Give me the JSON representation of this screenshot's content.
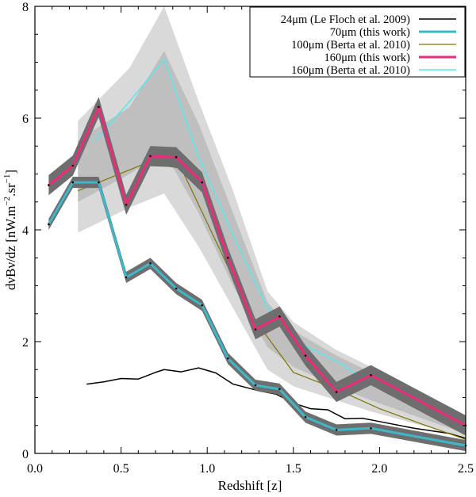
{
  "chart_data": {
    "type": "line",
    "title": "",
    "xlabel": "Redshift [z]",
    "ylabel_parts": {
      "main": "dνBν/dz [nW.m",
      "sup1": "−2",
      "mid": ".sr",
      "sup2": "−1",
      "end": "]"
    },
    "xlim": [
      0.0,
      2.5
    ],
    "ylim": [
      0,
      8
    ],
    "x_ticks": [
      "0.0",
      "0.5",
      "1.0",
      "1.5",
      "2.0",
      "2.5"
    ],
    "x_tick_values": [
      0.0,
      0.5,
      1.0,
      1.5,
      2.0,
      2.5
    ],
    "y_ticks": [
      "0",
      "2",
      "4",
      "6",
      "8"
    ],
    "y_tick_values": [
      0,
      2,
      4,
      6,
      8
    ],
    "legend": [
      {
        "label": "24μm (Le Floch et al. 2009)",
        "color": "#000000",
        "width": 1.5
      },
      {
        "label": "70μm (this work)",
        "color": "#3db8c8",
        "width": 3
      },
      {
        "label": "100μm (Berta et al. 2010)",
        "color": "#7f7400",
        "width": 1.2
      },
      {
        "label": "160μm (this work)",
        "color": "#ee2a7b",
        "width": 3
      },
      {
        "label": "160μm (Berta et al. 2010)",
        "color": "#55e8f0",
        "width": 1.5
      }
    ],
    "bands": [
      {
        "name": "160um-berta-outer-band",
        "color": "#d9d9d9",
        "x": [
          0.25,
          0.55,
          0.75,
          0.95,
          1.15,
          1.35,
          1.5,
          1.75,
          1.95,
          2.5
        ],
        "upper": [
          5.95,
          6.9,
          8.0,
          6.3,
          4.7,
          2.9,
          2.35,
          1.85,
          1.55,
          0.62
        ],
        "lower": [
          3.95,
          4.4,
          4.65,
          3.7,
          2.6,
          1.5,
          1.2,
          0.95,
          0.75,
          0.28
        ]
      },
      {
        "name": "160um-berta-inner-band",
        "color": "#bfbfbf",
        "x": [
          0.25,
          0.55,
          0.75,
          0.95,
          1.15,
          1.35,
          1.5,
          1.75,
          1.95,
          2.5
        ],
        "upper": [
          5.6,
          6.2,
          7.2,
          5.9,
          4.3,
          2.7,
          2.2,
          1.75,
          1.45,
          0.55
        ],
        "lower": [
          4.5,
          5.0,
          5.4,
          4.3,
          3.0,
          1.9,
          1.55,
          1.2,
          0.95,
          0.35
        ]
      }
    ],
    "series": [
      {
        "name": "24μm (Le Floch et al. 2009)",
        "color": "#000000",
        "width": 1.5,
        "x": [
          0.3,
          0.4,
          0.5,
          0.6,
          0.7,
          0.75,
          0.85,
          0.95,
          1.05,
          1.15,
          1.3,
          1.4,
          1.5,
          1.6,
          1.7,
          1.8,
          1.9,
          2.0,
          2.2,
          2.4,
          2.5
        ],
        "y": [
          1.24,
          1.28,
          1.34,
          1.33,
          1.45,
          1.5,
          1.46,
          1.53,
          1.44,
          1.24,
          1.12,
          1.06,
          0.9,
          0.8,
          0.78,
          0.62,
          0.63,
          0.57,
          0.45,
          0.36,
          0.27
        ]
      },
      {
        "name": "100μm (Berta et al. 2010)",
        "color": "#7f7400",
        "width": 1.2,
        "x": [
          0.25,
          0.45,
          0.65,
          0.85,
          1.05,
          1.25,
          1.5,
          1.75,
          2.0,
          2.25,
          2.5
        ],
        "y": [
          4.7,
          4.95,
          5.2,
          5.1,
          3.8,
          2.5,
          1.45,
          1.15,
          0.8,
          0.52,
          0.25
        ]
      },
      {
        "name": "160μm (Berta et al. 2010)",
        "color": "#55e8f0",
        "width": 1.5,
        "x": [
          0.35,
          0.55,
          0.75,
          0.95,
          1.15,
          1.35,
          1.55,
          1.75,
          1.95,
          2.2,
          2.5
        ],
        "y": [
          5.6,
          6.3,
          7.05,
          5.3,
          3.9,
          2.6,
          1.95,
          1.65,
          1.25,
          0.9,
          0.5
        ]
      },
      {
        "name": "70μm (this work)",
        "color": "#3db8c8",
        "width": 3,
        "err": 0.1,
        "x": [
          0.08,
          0.22,
          0.37,
          0.53,
          0.67,
          0.82,
          0.97,
          1.12,
          1.28,
          1.42,
          1.57,
          1.75,
          1.95,
          2.5
        ],
        "y": [
          4.1,
          4.85,
          4.85,
          3.15,
          3.4,
          2.95,
          2.65,
          1.7,
          1.22,
          1.15,
          0.65,
          0.42,
          0.45,
          0.14
        ]
      },
      {
        "name": "160μm (this work)",
        "color": "#ee2a7b",
        "width": 3,
        "err": 0.18,
        "x": [
          0.08,
          0.22,
          0.37,
          0.53,
          0.67,
          0.82,
          0.97,
          1.12,
          1.28,
          1.42,
          1.57,
          1.75,
          1.95,
          2.5
        ],
        "y": [
          4.8,
          5.15,
          6.2,
          4.45,
          5.32,
          5.3,
          4.85,
          3.5,
          2.22,
          2.45,
          1.75,
          1.1,
          1.4,
          0.5
        ]
      }
    ]
  }
}
